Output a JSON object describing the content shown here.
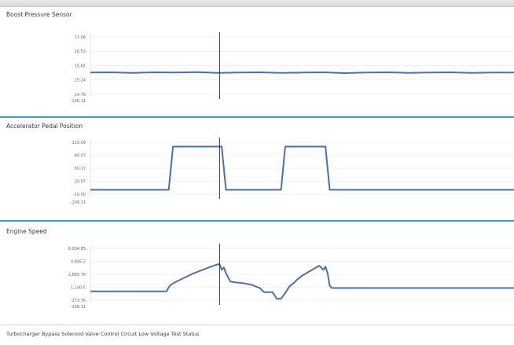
{
  "chart_data": [
    {
      "type": "line",
      "title": "Boost Pressure Sensor",
      "xlabel": "",
      "ylabel": "",
      "y_ticks": [
        "17.06",
        "16.53",
        "15.65",
        "15.24",
        "14.79"
      ],
      "x_tick": "-108.11",
      "ylim": [
        14.79,
        17.06
      ],
      "cursor_x_fraction": 0.305,
      "series": [
        {
          "color": "#4a70b0",
          "x": [
            0,
            0.05,
            0.1,
            0.15,
            0.2,
            0.25,
            0.3,
            0.35,
            0.4,
            0.45,
            0.5,
            0.55,
            0.6,
            0.65,
            0.7,
            0.75,
            0.8,
            0.85,
            0.9,
            0.95,
            1.0
          ],
          "values": [
            15.65,
            15.66,
            15.64,
            15.66,
            15.65,
            15.67,
            15.64,
            15.65,
            15.66,
            15.64,
            15.65,
            15.66,
            15.63,
            15.65,
            15.66,
            15.64,
            15.65,
            15.66,
            15.64,
            15.65,
            15.65
          ]
        }
      ]
    },
    {
      "type": "line",
      "title": "Accelerator Pedal Position",
      "xlabel": "",
      "ylabel": "",
      "y_ticks": [
        "110.08",
        "80.07",
        "50.17",
        "20.07",
        "-10.00"
      ],
      "x_tick": "-108.11",
      "ylim": [
        -10.0,
        110.08
      ],
      "cursor_x_fraction": 0.305,
      "series": [
        {
          "color": "#4a70b0",
          "x": [
            0,
            0.185,
            0.195,
            0.31,
            0.32,
            0.45,
            0.46,
            0.555,
            0.565,
            1.0
          ],
          "values": [
            0,
            0,
            100,
            100,
            0,
            0,
            100,
            100,
            0,
            0
          ]
        }
      ]
    },
    {
      "type": "line",
      "title": "Engine Speed",
      "xlabel": "",
      "ylabel": "",
      "y_ticks": [
        "6,004.85",
        "4,695.2",
        "2,880.76",
        "1,140.5",
        "-273.76"
      ],
      "x_tick": "-108.11",
      "ylim": [
        -273.76,
        6004.85
      ],
      "cursor_x_fraction": 0.305,
      "series": [
        {
          "color": "#4a70b0",
          "x": [
            0,
            0.18,
            0.185,
            0.19,
            0.2,
            0.22,
            0.24,
            0.26,
            0.28,
            0.3,
            0.305,
            0.31,
            0.315,
            0.32,
            0.33,
            0.34,
            0.36,
            0.38,
            0.4,
            0.41,
            0.43,
            0.44,
            0.45,
            0.46,
            0.47,
            0.48,
            0.49,
            0.5,
            0.52,
            0.54,
            0.55,
            0.555,
            0.56,
            0.565,
            0.57,
            0.6,
            1.0
          ],
          "values": [
            800,
            800,
            1300,
            1600,
            1900,
            2400,
            2900,
            3300,
            3700,
            4050,
            4100,
            3400,
            3700,
            3000,
            2000,
            1900,
            1800,
            1600,
            1200,
            700,
            700,
            -100,
            -100,
            600,
            1400,
            1800,
            2300,
            2700,
            3300,
            3900,
            3400,
            3800,
            3000,
            1500,
            1200,
            1200,
            1200
          ]
        }
      ]
    }
  ],
  "footer": {
    "status_text": "Turbocharger Bypass Solenoid Valve Control Circuit Low Voltage Test Status"
  }
}
